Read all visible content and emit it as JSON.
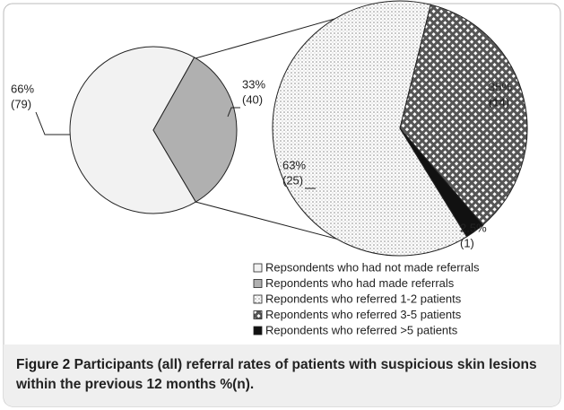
{
  "chart_data": [
    {
      "type": "pie",
      "categories": [
        "Repsondents who had not made referrals",
        "Repondents who had made referrals"
      ],
      "values": [
        66,
        33
      ],
      "value_labels": [
        "66%",
        "33%"
      ],
      "counts": [
        79,
        40
      ],
      "count_labels": [
        "(79)",
        "(40)"
      ],
      "colors": [
        "#f2f2f2",
        "#b0b0b0"
      ]
    },
    {
      "type": "pie",
      "categories": [
        "Repondents who referred 1-2 patients",
        "Repondents who referred 3-5 patients",
        "Repondents who referred >5 patients"
      ],
      "values": [
        63,
        35,
        2.5
      ],
      "value_labels": [
        "63%",
        "35%",
        "2.5%"
      ],
      "counts": [
        25,
        14,
        1
      ],
      "count_labels": [
        "(25)",
        "(14)",
        "(1)"
      ],
      "colors": [
        "#ffffff",
        "#555555",
        "#111111"
      ],
      "patterns": [
        "dots",
        "diamonds",
        "solid"
      ]
    }
  ],
  "caption": {
    "label": "Figure 2",
    "text": "Participants (all) referral rates of patients with suspicious skin lesions within the previous 12 months %(n)."
  }
}
